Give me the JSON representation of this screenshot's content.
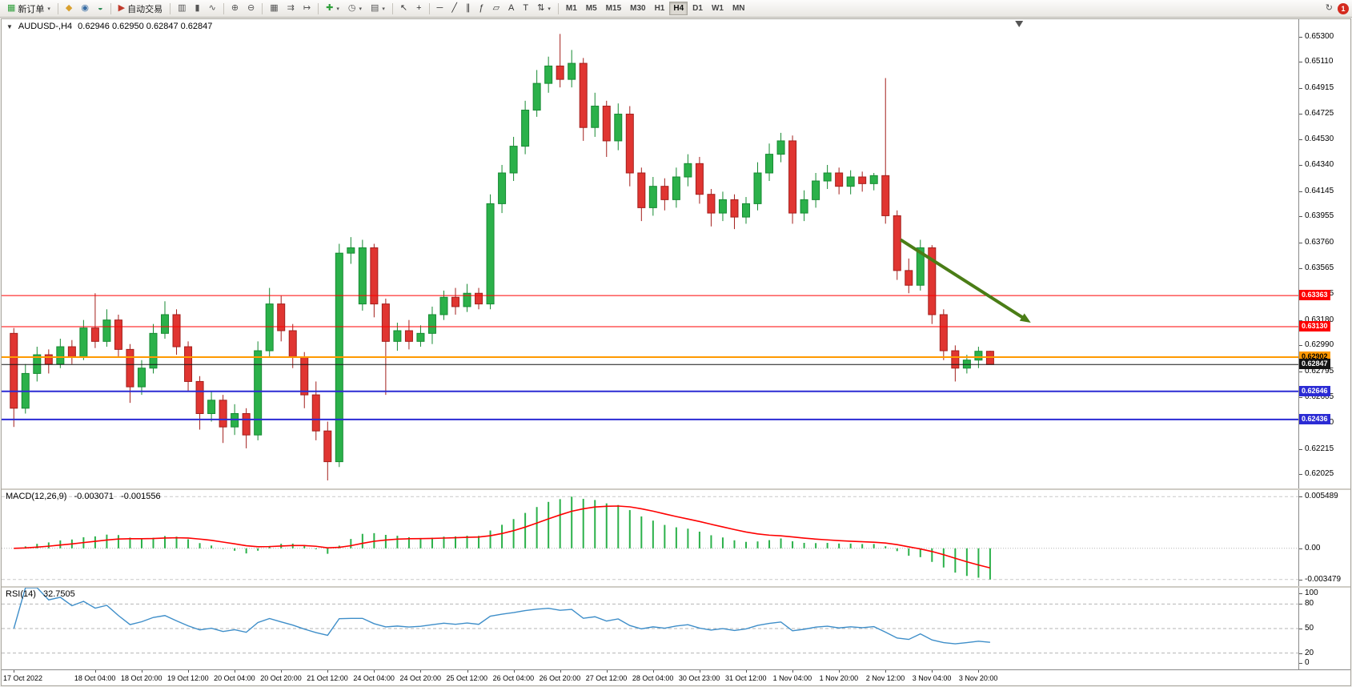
{
  "toolbar": {
    "items": [
      {
        "name": "new-order-button",
        "glyph": "▦",
        "color": "#2e9e3a",
        "label": "新订单",
        "caret": true
      },
      {
        "type": "sep"
      },
      {
        "name": "market-watch-button",
        "glyph": "◆",
        "color": "#d9a02e"
      },
      {
        "name": "data-window-button",
        "glyph": "◉",
        "color": "#3a6ea5"
      },
      {
        "name": "navigator-button",
        "glyph": "◒",
        "color": "#2e8b57"
      },
      {
        "type": "sep"
      },
      {
        "name": "autotrading-button",
        "glyph": "▶",
        "color": "#c03a2b",
        "label": "自动交易"
      },
      {
        "type": "sep"
      },
      {
        "name": "bar-chart-button",
        "glyph": "▥",
        "color": "#555555"
      },
      {
        "name": "candlestick-chart-button",
        "glyph": "▮",
        "color": "#555555"
      },
      {
        "name": "line-chart-button",
        "glyph": "∿",
        "color": "#555555"
      },
      {
        "type": "sep"
      },
      {
        "name": "zoom-in-button",
        "glyph": "⊕",
        "color": "#555555"
      },
      {
        "name": "zoom-out-button",
        "glyph": "⊖",
        "color": "#555555"
      },
      {
        "type": "sep"
      },
      {
        "name": "tile-windows-button",
        "glyph": "▦",
        "color": "#555555"
      },
      {
        "name": "auto-scroll-button",
        "glyph": "⇉",
        "color": "#555555"
      },
      {
        "name": "chart-shift-button",
        "glyph": "↦",
        "color": "#555555"
      },
      {
        "type": "sep"
      },
      {
        "name": "indicators-button",
        "glyph": "✚",
        "color": "#2e9e3a",
        "caret": true
      },
      {
        "name": "periods-button",
        "glyph": "◷",
        "color": "#555555",
        "caret": true
      },
      {
        "name": "templates-button",
        "glyph": "▤",
        "color": "#555555",
        "caret": true
      },
      {
        "type": "sep"
      },
      {
        "name": "cursor-button",
        "glyph": "↖",
        "color": "#333333"
      },
      {
        "name": "crosshair-button",
        "glyph": "+",
        "color": "#333333"
      },
      {
        "type": "sep"
      },
      {
        "name": "hline-button",
        "glyph": "─",
        "color": "#333333"
      },
      {
        "name": "trendline-button",
        "glyph": "╱",
        "color": "#333333"
      },
      {
        "name": "channel-button",
        "glyph": "∥",
        "color": "#333333"
      },
      {
        "name": "fibonacci-button",
        "glyph": "ƒ",
        "color": "#333333"
      },
      {
        "name": "shapes-button",
        "glyph": "▱",
        "color": "#333333"
      },
      {
        "name": "text-button",
        "glyph": "A",
        "color": "#333333"
      },
      {
        "name": "label-button",
        "glyph": "T",
        "color": "#333333"
      },
      {
        "name": "arrows-button",
        "glyph": "⇅",
        "color": "#333333",
        "caret": true
      },
      {
        "type": "sep"
      },
      {
        "type": "tf",
        "options": [
          "M1",
          "M5",
          "M15",
          "M30",
          "H1",
          "H4",
          "D1",
          "W1",
          "MN"
        ],
        "active": "H4"
      },
      {
        "type": "spacer"
      },
      {
        "name": "history-button",
        "glyph": "↻",
        "color": "#555555"
      },
      {
        "type": "badge",
        "name": "notification-badge",
        "label": "1",
        "color": "#d42a1e"
      }
    ]
  },
  "chart": {
    "symbol_label": "AUDUSD-,H4",
    "ohlc": "0.62946 0.62950 0.62847 0.62847",
    "price_axis": [
      "0.65300",
      "0.65110",
      "0.64915",
      "0.64725",
      "0.64530",
      "0.64340",
      "0.64145",
      "0.63955",
      "0.63760",
      "0.63565",
      "0.63375",
      "0.63180",
      "0.62990",
      "0.62795",
      "0.62605",
      "0.62410",
      "0.62215",
      "0.62025"
    ],
    "lines": [
      {
        "price": 0.63363,
        "label": "0.63363",
        "color": "#fe0000",
        "width": 1,
        "text_color": "#ffffff",
        "kind": "resistance-line"
      },
      {
        "price": 0.6313,
        "label": "0.63130",
        "color": "#fe0000",
        "width": 1,
        "text_color": "#ffffff",
        "kind": "resistance-line"
      },
      {
        "price": 0.62902,
        "label": "0.62902",
        "color": "#ff9900",
        "width": 2,
        "text_color": "#000000",
        "kind": "pivot-line"
      },
      {
        "price": 0.62847,
        "label": "0.62847",
        "color": "#141414",
        "width": 1,
        "text_color": "#ffffff",
        "kind": "current-price-line"
      },
      {
        "price": 0.62646,
        "label": "0.62646",
        "color": "#2b2bd4",
        "width": 2,
        "text_color": "#ffffff",
        "kind": "support-line"
      },
      {
        "price": 0.62436,
        "label": "0.62436",
        "color": "#2b2bd4",
        "width": 2,
        "text_color": "#ffffff",
        "kind": "support-line"
      }
    ],
    "arrow": {
      "from_index": 76.3,
      "from_price": 0.6378,
      "to_index": 87.5,
      "to_price": 0.6316,
      "color": "#4a7d16"
    },
    "scale": {
      "pmax": 0.6543,
      "pmin": 0.6192
    },
    "shift_marker_index": 86.5
  },
  "macd": {
    "name": "MACD(12,26,9)",
    "value_main": "-0.003071",
    "value_signal": "-0.001556",
    "axis_top": "0.005489",
    "axis_zero": "0.00",
    "axis_bottom": "-0.003479"
  },
  "rsi": {
    "name": "RSI(14)",
    "value": "32.7505",
    "axis": [
      "100",
      "80",
      "50",
      "20",
      "0"
    ]
  },
  "chart_data": {
    "type": "candlestick",
    "title": "AUDUSD H4",
    "symbol": "AUDUSD",
    "timeframe": "H4",
    "ohlc_format": [
      "open",
      "high",
      "low",
      "close"
    ],
    "candles": [
      [
        0.6308,
        0.6312,
        0.6238,
        0.6252
      ],
      [
        0.6252,
        0.6285,
        0.6248,
        0.6278
      ],
      [
        0.6278,
        0.6298,
        0.6272,
        0.6292
      ],
      [
        0.6292,
        0.6296,
        0.6278,
        0.6285
      ],
      [
        0.6285,
        0.6304,
        0.6282,
        0.6298
      ],
      [
        0.6298,
        0.6303,
        0.6285,
        0.629
      ],
      [
        0.629,
        0.6318,
        0.6288,
        0.6312
      ],
      [
        0.6312,
        0.6338,
        0.6297,
        0.6302
      ],
      [
        0.6302,
        0.6326,
        0.6298,
        0.6318
      ],
      [
        0.6318,
        0.6322,
        0.629,
        0.6296
      ],
      [
        0.6296,
        0.63,
        0.6256,
        0.6268
      ],
      [
        0.6268,
        0.6288,
        0.6262,
        0.6282
      ],
      [
        0.6282,
        0.6315,
        0.6278,
        0.6308
      ],
      [
        0.6308,
        0.6332,
        0.6304,
        0.6322
      ],
      [
        0.6322,
        0.6326,
        0.6292,
        0.6298
      ],
      [
        0.6298,
        0.6302,
        0.6265,
        0.6272
      ],
      [
        0.6272,
        0.6276,
        0.6236,
        0.6248
      ],
      [
        0.6248,
        0.6265,
        0.6242,
        0.6258
      ],
      [
        0.6258,
        0.6262,
        0.6226,
        0.6238
      ],
      [
        0.6238,
        0.6255,
        0.6232,
        0.6248
      ],
      [
        0.6248,
        0.6252,
        0.6222,
        0.6232
      ],
      [
        0.6232,
        0.6302,
        0.6228,
        0.6295
      ],
      [
        0.6295,
        0.6342,
        0.629,
        0.633
      ],
      [
        0.633,
        0.6336,
        0.6302,
        0.631
      ],
      [
        0.631,
        0.6315,
        0.6282,
        0.629
      ],
      [
        0.629,
        0.6294,
        0.6252,
        0.6262
      ],
      [
        0.6262,
        0.6272,
        0.6228,
        0.6235
      ],
      [
        0.6235,
        0.6242,
        0.6198,
        0.6212
      ],
      [
        0.6212,
        0.6375,
        0.6208,
        0.6368
      ],
      [
        0.6368,
        0.638,
        0.636,
        0.6372
      ],
      [
        0.633,
        0.6378,
        0.6325,
        0.6372
      ],
      [
        0.6372,
        0.6375,
        0.632,
        0.633
      ],
      [
        0.633,
        0.6334,
        0.6262,
        0.6302
      ],
      [
        0.6302,
        0.6316,
        0.6295,
        0.631
      ],
      [
        0.631,
        0.6318,
        0.6296,
        0.6302
      ],
      [
        0.6302,
        0.6314,
        0.6298,
        0.6308
      ],
      [
        0.6308,
        0.6328,
        0.63,
        0.6322
      ],
      [
        0.6322,
        0.634,
        0.6318,
        0.6335
      ],
      [
        0.6335,
        0.6342,
        0.6322,
        0.6328
      ],
      [
        0.6328,
        0.6345,
        0.6324,
        0.6338
      ],
      [
        0.6338,
        0.6342,
        0.6326,
        0.633
      ],
      [
        0.633,
        0.6412,
        0.6326,
        0.6405
      ],
      [
        0.6405,
        0.6434,
        0.6398,
        0.6428
      ],
      [
        0.6428,
        0.6455,
        0.6422,
        0.6448
      ],
      [
        0.6448,
        0.6482,
        0.6442,
        0.6475
      ],
      [
        0.6475,
        0.6505,
        0.647,
        0.6495
      ],
      [
        0.6495,
        0.6515,
        0.6488,
        0.6508
      ],
      [
        0.6508,
        0.6532,
        0.6492,
        0.6498
      ],
      [
        0.6498,
        0.652,
        0.6492,
        0.651
      ],
      [
        0.651,
        0.6514,
        0.6452,
        0.6462
      ],
      [
        0.6462,
        0.6488,
        0.6455,
        0.6478
      ],
      [
        0.6478,
        0.6482,
        0.644,
        0.6452
      ],
      [
        0.6452,
        0.648,
        0.6445,
        0.6472
      ],
      [
        0.6472,
        0.6478,
        0.6418,
        0.6428
      ],
      [
        0.6428,
        0.6432,
        0.6392,
        0.6402
      ],
      [
        0.6402,
        0.6425,
        0.6396,
        0.6418
      ],
      [
        0.6418,
        0.6424,
        0.64,
        0.6408
      ],
      [
        0.6408,
        0.6432,
        0.6402,
        0.6425
      ],
      [
        0.6425,
        0.6442,
        0.6418,
        0.6435
      ],
      [
        0.6435,
        0.644,
        0.6405,
        0.6412
      ],
      [
        0.6412,
        0.6416,
        0.6388,
        0.6398
      ],
      [
        0.6398,
        0.6414,
        0.6392,
        0.6408
      ],
      [
        0.6408,
        0.6412,
        0.6386,
        0.6395
      ],
      [
        0.6395,
        0.641,
        0.639,
        0.6405
      ],
      [
        0.6405,
        0.6436,
        0.64,
        0.6428
      ],
      [
        0.6428,
        0.645,
        0.6422,
        0.6442
      ],
      [
        0.6442,
        0.6458,
        0.6436,
        0.6452
      ],
      [
        0.6452,
        0.6456,
        0.639,
        0.6398
      ],
      [
        0.6398,
        0.6415,
        0.6392,
        0.6408
      ],
      [
        0.6408,
        0.6428,
        0.6402,
        0.6422
      ],
      [
        0.6422,
        0.6434,
        0.6416,
        0.6428
      ],
      [
        0.6428,
        0.6432,
        0.6412,
        0.6418
      ],
      [
        0.6418,
        0.643,
        0.6412,
        0.6425
      ],
      [
        0.6425,
        0.6429,
        0.6414,
        0.642
      ],
      [
        0.642,
        0.6428,
        0.6415,
        0.6426
      ],
      [
        0.6426,
        0.6499,
        0.639,
        0.6396
      ],
      [
        0.6396,
        0.64,
        0.6348,
        0.6355
      ],
      [
        0.6355,
        0.6364,
        0.6338,
        0.6344
      ],
      [
        0.6344,
        0.6378,
        0.634,
        0.6372
      ],
      [
        0.6372,
        0.6374,
        0.6315,
        0.6322
      ],
      [
        0.6322,
        0.6326,
        0.6288,
        0.6295
      ],
      [
        0.6295,
        0.6299,
        0.6272,
        0.6282
      ],
      [
        0.6282,
        0.6292,
        0.6278,
        0.6288
      ],
      [
        0.6288,
        0.6298,
        0.6282,
        0.62946
      ],
      [
        0.62946,
        0.6295,
        0.62847,
        0.62847
      ]
    ],
    "x_labels": [
      {
        "i": 0,
        "t": "17 Oct 2022"
      },
      {
        "i": 7,
        "t": "18 Oct 04:00"
      },
      {
        "i": 11,
        "t": "18 Oct 20:00"
      },
      {
        "i": 15,
        "t": "19 Oct 12:00"
      },
      {
        "i": 19,
        "t": "20 Oct 04:00"
      },
      {
        "i": 23,
        "t": "20 Oct 20:00"
      },
      {
        "i": 27,
        "t": "21 Oct 12:00"
      },
      {
        "i": 31,
        "t": "24 Oct 04:00"
      },
      {
        "i": 35,
        "t": "24 Oct 20:00"
      },
      {
        "i": 39,
        "t": "25 Oct 12:00"
      },
      {
        "i": 43,
        "t": "26 Oct 04:00"
      },
      {
        "i": 47,
        "t": "26 Oct 20:00"
      },
      {
        "i": 51,
        "t": "27 Oct 12:00"
      },
      {
        "i": 55,
        "t": "28 Oct 04:00"
      },
      {
        "i": 59,
        "t": "30 Oct 23:00"
      },
      {
        "i": 63,
        "t": "31 Oct 12:00"
      },
      {
        "i": 67,
        "t": "1 Nov 04:00"
      },
      {
        "i": 71,
        "t": "1 Nov 20:00"
      },
      {
        "i": 75,
        "t": "2 Nov 12:00"
      },
      {
        "i": 79,
        "t": "3 Nov 04:00"
      },
      {
        "i": 83,
        "t": "3 Nov 20:00"
      }
    ],
    "colors": {
      "bull": "#2bb14a",
      "bull_border": "#168a32",
      "bear": "#e03531",
      "bear_border": "#a31f1c",
      "macd_histogram": "#2bb14a",
      "macd_signal": "#fe0000",
      "rsi_line": "#3e8ec9"
    },
    "indicators": [
      {
        "name": "MACD",
        "params": [
          12,
          26,
          9
        ],
        "current": [
          -0.003071,
          -0.001556
        ],
        "axis": [
          "0.005489",
          "0.00",
          "-0.003479"
        ]
      },
      {
        "name": "RSI",
        "params": [
          14
        ],
        "current": 32.7505,
        "levels": [
          80,
          50,
          20
        ],
        "range": [
          0,
          100
        ]
      }
    ]
  }
}
